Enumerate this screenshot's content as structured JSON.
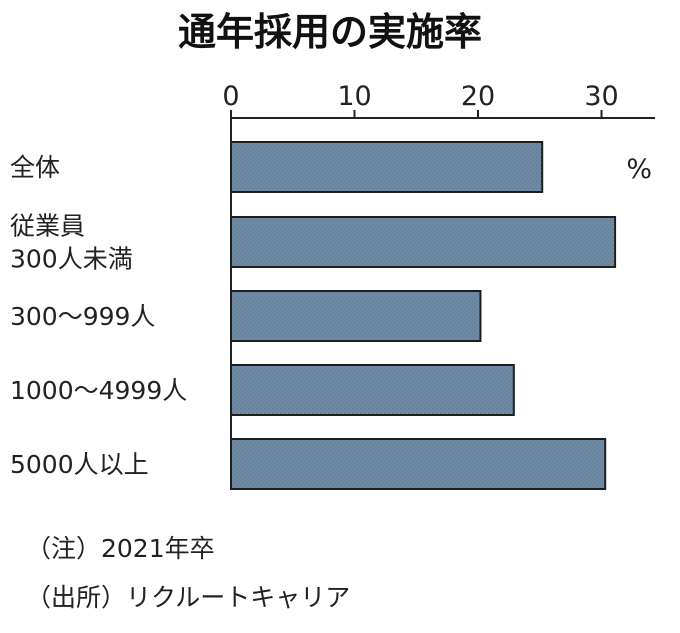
{
  "chart_data": {
    "type": "bar",
    "orientation": "horizontal",
    "title": "通年採用の実施率",
    "unit": "%",
    "categories": [
      [
        "全体"
      ],
      [
        "従業員",
        "300人未満"
      ],
      [
        "300～999人"
      ],
      [
        "1000～4999人"
      ],
      [
        "5000人以上"
      ]
    ],
    "values": [
      25.2,
      31.1,
      20.2,
      22.9,
      30.3
    ],
    "xlim": [
      0,
      35
    ],
    "ticks": [
      0,
      10,
      20,
      30
    ],
    "tick_labels": [
      "0",
      "10",
      "20",
      "30"
    ],
    "grid": false,
    "bar_color": "#6f8aa3"
  },
  "notes": [
    "（注）2021年卒",
    "（出所）リクルートキャリア"
  ]
}
